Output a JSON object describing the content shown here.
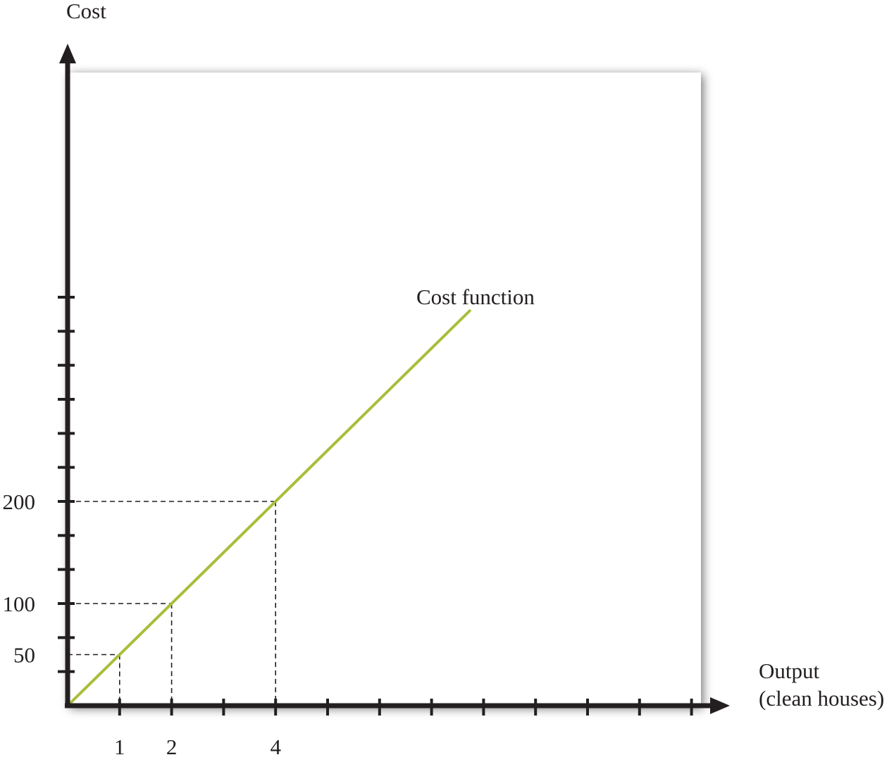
{
  "chart_data": {
    "type": "line",
    "title": "",
    "xlabel": "Output",
    "xlabel_line2": "(clean houses)",
    "ylabel": "Cost",
    "xlim": [
      0,
      12
    ],
    "ylim": [
      0,
      400
    ],
    "x_tick_count": 12,
    "y_tick_count": 12,
    "x_tick_labels": [
      {
        "value": 1,
        "label": "1"
      },
      {
        "value": 2,
        "label": "2"
      },
      {
        "value": 4,
        "label": "4"
      }
    ],
    "y_tick_labels": [
      {
        "value": 50,
        "label": "50"
      },
      {
        "value": 100,
        "label": "100"
      },
      {
        "value": 200,
        "label": "200"
      }
    ],
    "series": [
      {
        "name": "Cost function",
        "x": [
          0,
          7.75
        ],
        "y": [
          0,
          387.5
        ]
      }
    ],
    "reference_points": [
      {
        "x": 1,
        "y": 50
      },
      {
        "x": 2,
        "y": 100
      },
      {
        "x": 4,
        "y": 200
      }
    ],
    "grid": false,
    "legend": "none",
    "colors": {
      "line": "#a9bd3a",
      "axis": "#231f20",
      "plot_background": "#ffffff",
      "shadow": "#8a8a8a"
    }
  }
}
